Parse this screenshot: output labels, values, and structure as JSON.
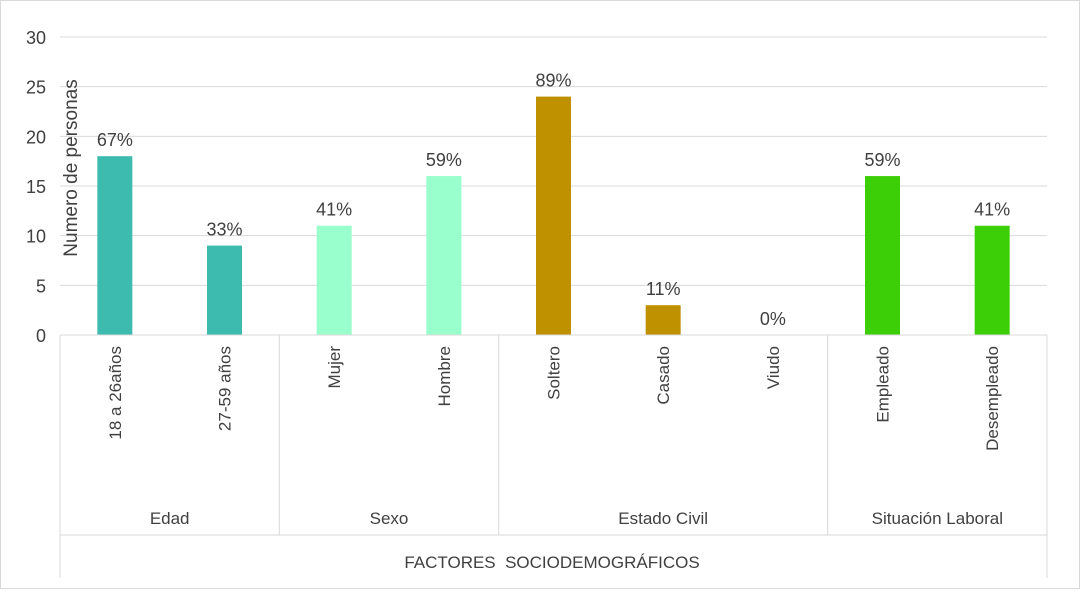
{
  "chart_data": {
    "type": "bar",
    "title": "",
    "ylabel": "Numero de personas",
    "xlabel": "FACTORES  SOCIODEMOGRÁFICOS",
    "ylim": [
      0,
      30
    ],
    "yticks": [
      0,
      5,
      10,
      15,
      20,
      25,
      30
    ],
    "grid": true,
    "groups": [
      {
        "label": "Edad",
        "color": "#3DBBAE",
        "bars": [
          {
            "category": "18 a 26años",
            "value": 18,
            "label": "67%"
          },
          {
            "category": "27-59 años",
            "value": 9,
            "label": "33%"
          }
        ]
      },
      {
        "label": "Sexo",
        "color": "#99FFCC",
        "bars": [
          {
            "category": "Mujer",
            "value": 11,
            "label": "41%"
          },
          {
            "category": "Hombre",
            "value": 16,
            "label": "59%"
          }
        ]
      },
      {
        "label": "Estado Civil",
        "color": "#BF9000",
        "bars": [
          {
            "category": "Soltero",
            "value": 24,
            "label": "89%"
          },
          {
            "category": "Casado",
            "value": 3,
            "label": "11%"
          },
          {
            "category": "Viudo",
            "value": 0,
            "label": "0%"
          }
        ]
      },
      {
        "label": "Situación Laboral",
        "color": "#3CCE06",
        "bars": [
          {
            "category": "Empleado",
            "value": 16,
            "label": "59%"
          },
          {
            "category": "Desempleado",
            "value": 11,
            "label": "41%"
          }
        ]
      }
    ]
  }
}
